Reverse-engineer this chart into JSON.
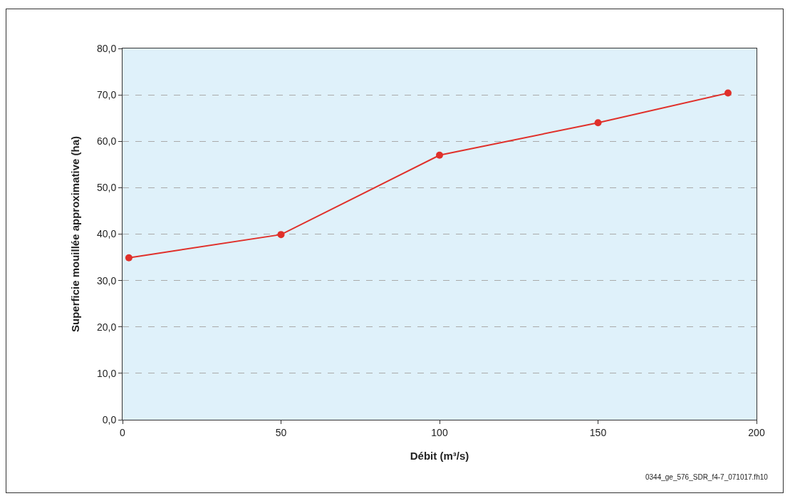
{
  "chart_data": {
    "type": "line",
    "xlabel": "Débit (m³/s)",
    "ylabel": "Superficie mouillée approximative (ha)",
    "x": [
      2,
      50,
      100,
      150,
      191
    ],
    "series": [
      {
        "color": "#e0302a",
        "values": [
          34.9,
          39.9,
          57.0,
          64.0,
          70.4
        ]
      }
    ],
    "xlim": [
      0,
      200
    ],
    "xticks": [
      0,
      50,
      100,
      150,
      200
    ],
    "ylim": [
      0,
      80
    ],
    "yticks": [
      {
        "value": 0,
        "label": "0,0"
      },
      {
        "value": 10,
        "label": "10,0"
      },
      {
        "value": 20,
        "label": "20,0"
      },
      {
        "value": 30,
        "label": "30,0"
      },
      {
        "value": 40,
        "label": "40,0"
      },
      {
        "value": 50,
        "label": "50,0"
      },
      {
        "value": 60,
        "label": "60,0"
      },
      {
        "value": 70,
        "label": "70,0"
      },
      {
        "value": 80,
        "label": "80,0"
      }
    ],
    "grid": "y",
    "marker": "circle",
    "line_style": "solid",
    "annotations": [
      "0344_ge_576_SDR_f4-7_071017.fh10"
    ]
  }
}
